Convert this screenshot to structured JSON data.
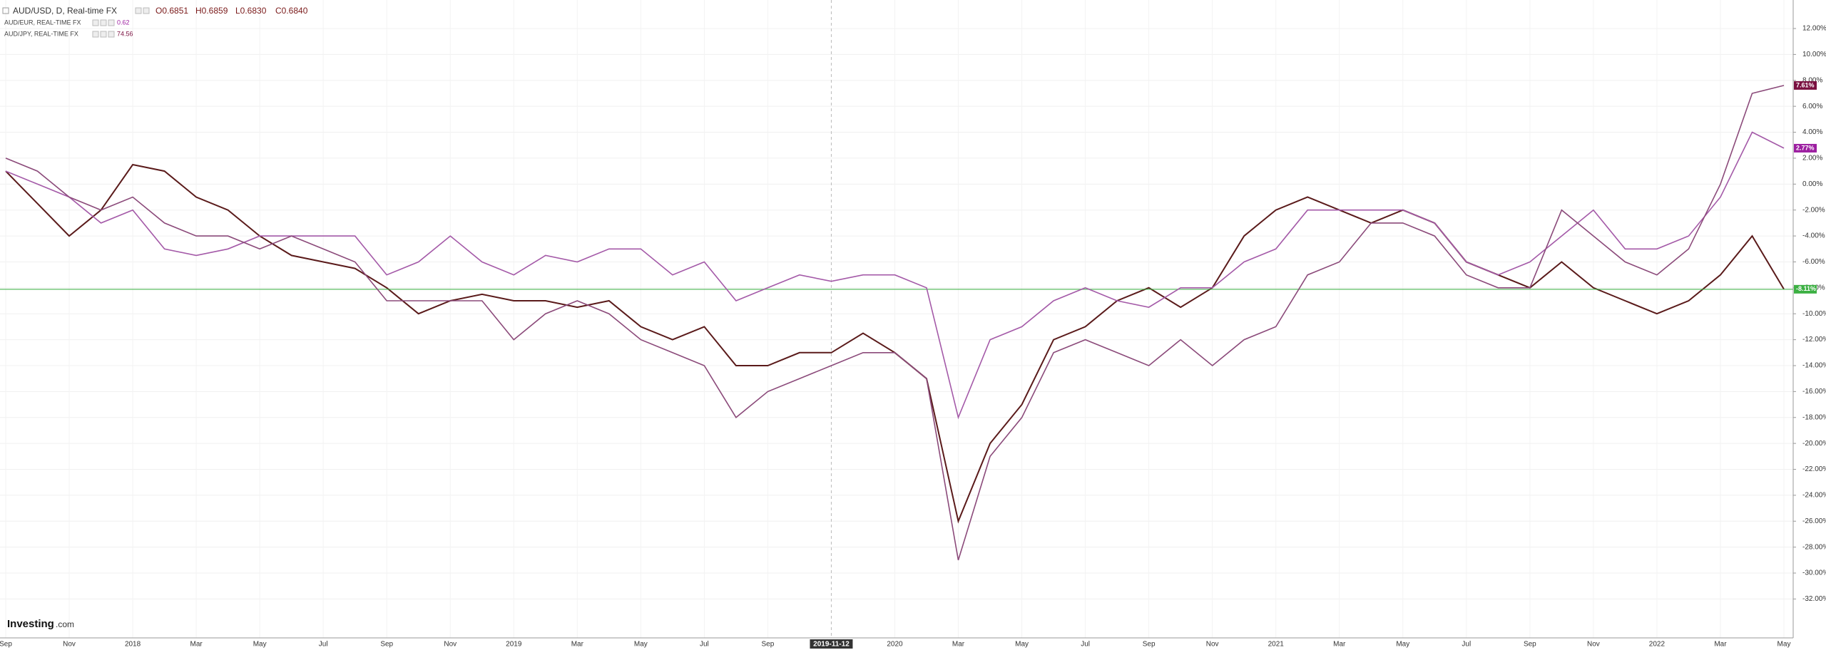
{
  "chart_data": {
    "type": "line",
    "title": "AUD/USD, D, Real-time FX",
    "ohlc_labels": [
      "O0.6851",
      "H0.6859",
      "L0.6830",
      "C0.6840"
    ],
    "watermark": [
      "Investing",
      ".com"
    ],
    "xticks": [
      "Sep",
      "Nov",
      "2018",
      "Mar",
      "May",
      "Jul",
      "Sep",
      "Nov",
      "2019",
      "Mar",
      "May",
      "Jul",
      "Sep",
      "2019-11-12",
      "2020",
      "Mar",
      "May",
      "Jul",
      "Sep",
      "Nov",
      "2021",
      "Mar",
      "May",
      "Jul",
      "Sep",
      "Nov",
      "2022",
      "Mar",
      "May"
    ],
    "ylim": [
      -35,
      14.2
    ],
    "yticks": [
      {
        "value": 12,
        "label": "12.00%"
      },
      {
        "value": 10,
        "label": "10.00%"
      },
      {
        "value": 8,
        "label": "8.00%"
      },
      {
        "value": 6,
        "label": "6.00%"
      },
      {
        "value": 4,
        "label": "4.00%"
      },
      {
        "value": 2,
        "label": "2.00%"
      },
      {
        "value": 0,
        "label": "0.00%"
      },
      {
        "value": -2,
        "label": "-2.00%"
      },
      {
        "value": -4,
        "label": "-4.00%"
      },
      {
        "value": -6,
        "label": "-6.00%"
      },
      {
        "value": -8,
        "label": "-8.00%"
      },
      {
        "value": -10,
        "label": "-10.00%"
      },
      {
        "value": -12,
        "label": "-12.00%"
      },
      {
        "value": -14,
        "label": "-14.00%"
      },
      {
        "value": -16,
        "label": "-16.00%"
      },
      {
        "value": -18,
        "label": "-18.00%"
      },
      {
        "value": -20,
        "label": "-20.00%"
      },
      {
        "value": -22,
        "label": "-22.00%"
      },
      {
        "value": -24,
        "label": "-24.00%"
      },
      {
        "value": -26,
        "label": "-26.00%"
      },
      {
        "value": -28,
        "label": "-28.00%"
      },
      {
        "value": -30,
        "label": "-30.00%"
      },
      {
        "value": -32,
        "label": "-32.00%"
      }
    ],
    "grid": true,
    "series": [
      {
        "name": "AUD/USD",
        "color": "#5a1a1a",
        "tag_color": "#3cb043",
        "end_label": "-8.11%",
        "values": [
          1,
          -1.5,
          -4,
          -2,
          1.5,
          1,
          -1,
          -2,
          -4,
          -5.5,
          -6,
          -6.5,
          -8,
          -10,
          -9,
          -8.5,
          -9,
          -9,
          -9.5,
          -9,
          -11,
          -12,
          -11,
          -14,
          -14,
          -13,
          -13,
          -11.5,
          -13,
          -15,
          -26,
          -20,
          -17,
          -12,
          -11,
          -9,
          -8,
          -9.5,
          -8,
          -4,
          -2,
          -1,
          -2,
          -3,
          -2,
          -3,
          -6,
          -7,
          -8,
          -6,
          -8,
          -9,
          -10,
          -9,
          -7,
          -4,
          -8.11
        ]
      },
      {
        "name": "AUD/EUR, REAL-TIME FX",
        "legend_value": "0.62",
        "color": "#a45aa8",
        "tag_color": "#9c1ea0",
        "end_label": "2.77%",
        "values": [
          1,
          0,
          -1,
          -3,
          -2,
          -5,
          -5.5,
          -5,
          -4,
          -4,
          -4,
          -4,
          -7,
          -6,
          -4,
          -6,
          -7,
          -5.5,
          -6,
          -5,
          -5,
          -7,
          -6,
          -9,
          -8,
          -7,
          -7.5,
          -7,
          -7,
          -8,
          -18,
          -12,
          -11,
          -9,
          -8,
          -9,
          -9.5,
          -8,
          -8,
          -6,
          -5,
          -2,
          -2,
          -2,
          -2,
          -3,
          -6,
          -7,
          -6,
          -4,
          -2,
          -5,
          -5,
          -4,
          -1,
          4,
          2.77
        ]
      },
      {
        "name": "AUD/JPY, REAL-TIME FX",
        "legend_value": "74.56",
        "color": "#8b4a7a",
        "tag_color": "#7a1040",
        "end_label": "7.61%",
        "values": [
          2,
          1,
          -1,
          -2,
          -1,
          -3,
          -4,
          -4,
          -5,
          -4,
          -5,
          -6,
          -9,
          -9,
          -9,
          -9,
          -12,
          -10,
          -9,
          -10,
          -12,
          -13,
          -14,
          -18,
          -16,
          -15,
          -14,
          -13,
          -13,
          -15,
          -29,
          -21,
          -18,
          -13,
          -12,
          -13,
          -14,
          -12,
          -14,
          -12,
          -11,
          -7,
          -6,
          -3,
          -3,
          -4,
          -7,
          -8,
          -8,
          -2,
          -4,
          -6,
          -7,
          -5,
          0,
          7,
          7.61
        ]
      }
    ]
  }
}
